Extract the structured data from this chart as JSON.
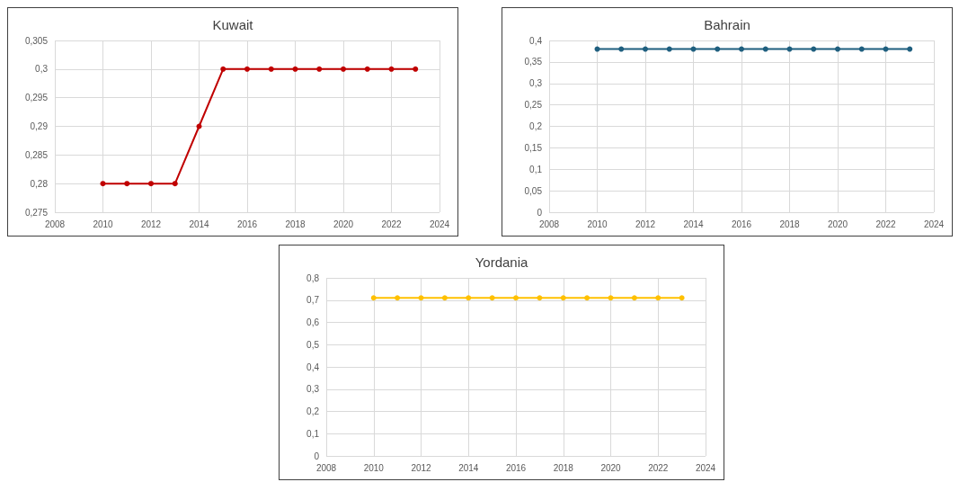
{
  "chart_data": [
    {
      "type": "line",
      "title": "Kuwait",
      "x": [
        2010,
        2011,
        2012,
        2013,
        2014,
        2015,
        2016,
        2017,
        2018,
        2019,
        2020,
        2021,
        2022,
        2023
      ],
      "series": [
        {
          "color": "#c00000",
          "values": [
            0.28,
            0.28,
            0.28,
            0.28,
            0.29,
            0.3,
            0.3,
            0.3,
            0.3,
            0.3,
            0.3,
            0.3,
            0.3,
            0.3
          ]
        }
      ],
      "xlim": [
        2008,
        2024
      ],
      "xticks": [
        2008,
        2010,
        2012,
        2014,
        2016,
        2018,
        2020,
        2022,
        2024
      ],
      "ylim": [
        0.275,
        0.305
      ],
      "yticks": [
        {
          "value": 0.275,
          "label": "0,275"
        },
        {
          "value": 0.28,
          "label": "0,28"
        },
        {
          "value": 0.285,
          "label": "0,285"
        },
        {
          "value": 0.29,
          "label": "0,29"
        },
        {
          "value": 0.295,
          "label": "0,295"
        },
        {
          "value": 0.3,
          "label": "0,3"
        },
        {
          "value": 0.305,
          "label": "0,305"
        }
      ],
      "grid": true,
      "marker": "circle",
      "line_style": "solid"
    },
    {
      "type": "line",
      "title": "Bahrain",
      "x": [
        2010,
        2011,
        2012,
        2013,
        2014,
        2015,
        2016,
        2017,
        2018,
        2019,
        2020,
        2021,
        2022,
        2023
      ],
      "series": [
        {
          "color": "#1f5f7f",
          "values": [
            0.38,
            0.38,
            0.38,
            0.38,
            0.38,
            0.38,
            0.38,
            0.38,
            0.38,
            0.38,
            0.38,
            0.38,
            0.38,
            0.38
          ]
        }
      ],
      "xlim": [
        2008,
        2024
      ],
      "xticks": [
        2008,
        2010,
        2012,
        2014,
        2016,
        2018,
        2020,
        2022,
        2024
      ],
      "ylim": [
        0,
        0.4
      ],
      "yticks": [
        0,
        {
          "value": 0.05,
          "label": "0,05"
        },
        {
          "value": 0.1,
          "label": "0,1"
        },
        {
          "value": 0.15,
          "label": "0,15"
        },
        {
          "value": 0.2,
          "label": "0,2"
        },
        {
          "value": 0.25,
          "label": "0,25"
        },
        {
          "value": 0.3,
          "label": "0,3"
        },
        {
          "value": 0.35,
          "label": "0,35"
        },
        {
          "value": 0.4,
          "label": "0,4"
        }
      ],
      "grid": true,
      "marker": "circle",
      "line_style": "solid"
    },
    {
      "type": "line",
      "title": "Yordania",
      "x": [
        2010,
        2011,
        2012,
        2013,
        2014,
        2015,
        2016,
        2017,
        2018,
        2019,
        2020,
        2021,
        2022,
        2023
      ],
      "series": [
        {
          "color": "#ffc000",
          "values": [
            0.71,
            0.71,
            0.71,
            0.71,
            0.71,
            0.71,
            0.71,
            0.71,
            0.71,
            0.71,
            0.71,
            0.71,
            0.71,
            0.71
          ]
        }
      ],
      "xlim": [
        2008,
        2024
      ],
      "xticks": [
        2008,
        2010,
        2012,
        2014,
        2016,
        2018,
        2020,
        2022,
        2024
      ],
      "ylim": [
        0,
        0.8
      ],
      "yticks": [
        0,
        {
          "value": 0.1,
          "label": "0,1"
        },
        {
          "value": 0.2,
          "label": "0,2"
        },
        {
          "value": 0.3,
          "label": "0,3"
        },
        {
          "value": 0.4,
          "label": "0,4"
        },
        {
          "value": 0.5,
          "label": "0,5"
        },
        {
          "value": 0.6,
          "label": "0,6"
        },
        {
          "value": 0.7,
          "label": "0,7"
        },
        {
          "value": 0.8,
          "label": "0,8"
        }
      ],
      "grid": true,
      "marker": "circle",
      "line_style": "solid"
    }
  ]
}
